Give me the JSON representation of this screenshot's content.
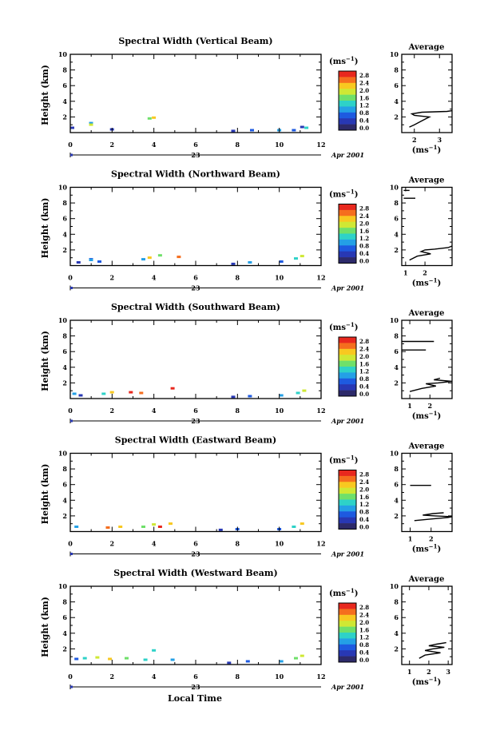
{
  "figure": {
    "xlabel_bottom": "Local Time",
    "date_label": "Apr 2001",
    "day_label": "23",
    "unit_label": "(ms",
    "unit_exp": "−1",
    "unit_close": ")",
    "avg_title": "Average"
  },
  "colorbar": {
    "ticks": [
      "2.8",
      "2.4",
      "2.0",
      "1.6",
      "1.2",
      "0.8",
      "0.4",
      "0.0"
    ],
    "colors": [
      "#e8281e",
      "#f56e1e",
      "#f8c820",
      "#cfe834",
      "#6fe06a",
      "#2ed2c8",
      "#24a0e6",
      "#1e5ae0",
      "#2838b4",
      "#2d2a6a"
    ]
  },
  "chart_data": [
    {
      "type": "heatmap",
      "title": "Spectral Width (Vertical Beam)",
      "ylabel": "Height (km)",
      "xlim": [
        0,
        12
      ],
      "ylim": [
        0,
        10
      ],
      "xticks": [
        "0",
        "2",
        "4",
        "6",
        "8",
        "10",
        "12"
      ],
      "yticks": [
        "2",
        "4",
        "6",
        "8",
        "10"
      ],
      "cells": [
        [
          0.0,
          0.6,
          0.4
        ],
        [
          0.9,
          1.2,
          1.1
        ],
        [
          0.9,
          1.0,
          2.0
        ],
        [
          1.9,
          0.4,
          0.5
        ],
        [
          3.7,
          1.8,
          1.6
        ],
        [
          3.9,
          1.9,
          2.2
        ],
        [
          7.7,
          0.2,
          0.4
        ],
        [
          8.6,
          0.3,
          0.8
        ],
        [
          9.9,
          0.3,
          1.0
        ],
        [
          10.6,
          0.3,
          0.9
        ],
        [
          11.0,
          0.7,
          0.6
        ],
        [
          11.2,
          0.6,
          1.5
        ]
      ],
      "avg": {
        "xlim": [
          1.5,
          3.5
        ],
        "xticks": [
          "2",
          "3"
        ],
        "yticks": [
          "2",
          "4",
          "6",
          "8",
          "10"
        ],
        "profile": [
          [
            1.8,
            0.7
          ],
          [
            2.0,
            1.0
          ],
          [
            2.3,
            1.5
          ],
          [
            2.6,
            2.0
          ],
          [
            2.0,
            2.2
          ],
          [
            1.9,
            2.4
          ],
          [
            2.3,
            2.6
          ],
          [
            3.3,
            2.7
          ],
          [
            3.5,
            2.8
          ]
        ]
      }
    },
    {
      "type": "heatmap",
      "title": "Spectral Width (Northward Beam)",
      "ylabel": "Height (km)",
      "xlim": [
        0,
        12
      ],
      "ylim": [
        0,
        10
      ],
      "xticks": [
        "0",
        "2",
        "4",
        "6",
        "8",
        "10",
        "12"
      ],
      "yticks": [
        "2",
        "4",
        "6",
        "8",
        "10"
      ],
      "cells": [
        [
          0.3,
          0.4,
          0.5
        ],
        [
          0.9,
          0.8,
          0.7
        ],
        [
          0.9,
          0.7,
          1.2
        ],
        [
          1.3,
          0.5,
          0.9
        ],
        [
          3.4,
          0.8,
          1.1
        ],
        [
          3.7,
          1.0,
          2.4
        ],
        [
          4.2,
          1.3,
          1.8
        ],
        [
          5.1,
          1.1,
          2.6
        ],
        [
          7.7,
          0.2,
          0.5
        ],
        [
          8.5,
          0.4,
          1.0
        ],
        [
          10.0,
          0.5,
          0.9
        ],
        [
          10.7,
          0.9,
          1.4
        ],
        [
          11.0,
          1.2,
          2.0
        ]
      ],
      "avg": {
        "xlim": [
          0.8,
          3.4
        ],
        "xticks": [
          "1",
          "2"
        ],
        "yticks": [
          "2",
          "4",
          "6",
          "8",
          "10"
        ],
        "profile": [
          [
            1.2,
            0.7
          ],
          [
            1.6,
            1.2
          ],
          [
            2.3,
            1.5
          ],
          [
            1.8,
            1.8
          ],
          [
            2.0,
            2.0
          ],
          [
            2.5,
            2.1
          ],
          [
            3.2,
            2.3
          ],
          [
            3.4,
            2.5
          ]
        ],
        "profile2": [
          [
            0.9,
            8.6
          ],
          [
            1.5,
            8.6
          ]
        ],
        "profile3": [
          [
            0.9,
            9.6
          ],
          [
            1.2,
            9.6
          ]
        ]
      }
    },
    {
      "type": "heatmap",
      "title": "Spectral Width (Southward Beam)",
      "ylabel": "Height (km)",
      "xlim": [
        0,
        12
      ],
      "ylim": [
        0,
        10
      ],
      "xticks": [
        "0",
        "2",
        "4",
        "6",
        "8",
        "10",
        "12"
      ],
      "yticks": [
        "2",
        "4",
        "6",
        "8",
        "10"
      ],
      "cells": [
        [
          0.1,
          0.6,
          1.2
        ],
        [
          0.4,
          0.4,
          0.5
        ],
        [
          1.5,
          0.6,
          1.5
        ],
        [
          1.9,
          0.8,
          2.4
        ],
        [
          2.8,
          0.8,
          2.8
        ],
        [
          3.3,
          0.7,
          2.6
        ],
        [
          4.8,
          1.3,
          2.7
        ],
        [
          7.7,
          0.2,
          0.5
        ],
        [
          8.5,
          0.3,
          0.9
        ],
        [
          10.0,
          0.4,
          1.0
        ],
        [
          10.8,
          0.7,
          1.4
        ],
        [
          11.1,
          1.0,
          2.0
        ]
      ],
      "avg": {
        "xlim": [
          0.6,
          3.1
        ],
        "xticks": [
          "1",
          "2"
        ],
        "yticks": [
          "2",
          "4",
          "6",
          "8",
          "10"
        ],
        "profile": [
          [
            1.0,
            0.9
          ],
          [
            1.6,
            1.3
          ],
          [
            2.3,
            1.6
          ],
          [
            1.8,
            1.9
          ],
          [
            2.4,
            2.0
          ],
          [
            3.1,
            2.2
          ],
          [
            2.2,
            2.4
          ],
          [
            2.5,
            2.6
          ]
        ],
        "profile2": [
          [
            0.6,
            6.2
          ],
          [
            1.8,
            6.2
          ]
        ],
        "profile3": [
          [
            0.6,
            7.3
          ],
          [
            2.2,
            7.3
          ]
        ]
      }
    },
    {
      "type": "heatmap",
      "title": "Spectral Width (Eastward Beam)",
      "ylabel": "Height (km)",
      "xlim": [
        0,
        12
      ],
      "ylim": [
        0,
        10
      ],
      "xticks": [
        "0",
        "2",
        "4",
        "6",
        "8",
        "10",
        "12"
      ],
      "yticks": [
        "2",
        "4",
        "6",
        "8",
        "10"
      ],
      "cells": [
        [
          0.2,
          0.6,
          1.2
        ],
        [
          1.7,
          0.5,
          2.6
        ],
        [
          2.3,
          0.6,
          2.2
        ],
        [
          3.4,
          0.6,
          1.6
        ],
        [
          3.9,
          0.9,
          2.0
        ],
        [
          4.2,
          0.6,
          2.8
        ],
        [
          4.7,
          1.0,
          2.3
        ],
        [
          7.1,
          0.2,
          0.4
        ],
        [
          7.9,
          0.3,
          0.8
        ],
        [
          9.9,
          0.3,
          0.9
        ],
        [
          10.6,
          0.6,
          1.4
        ],
        [
          11.0,
          1.0,
          2.1
        ]
      ],
      "avg": {
        "xlim": [
          0.6,
          3.0
        ],
        "xticks": [
          "1",
          "2"
        ],
        "yticks": [
          "2",
          "4",
          "6",
          "8",
          "10"
        ],
        "profile": [
          [
            1.2,
            1.4
          ],
          [
            2.0,
            1.6
          ],
          [
            2.8,
            1.8
          ],
          [
            3.0,
            1.9
          ],
          [
            2.2,
            2.0
          ],
          [
            1.6,
            2.1
          ],
          [
            2.1,
            2.3
          ],
          [
            2.6,
            2.4
          ]
        ],
        "profile2": [
          [
            1.0,
            5.9
          ],
          [
            2.0,
            5.9
          ]
        ]
      }
    },
    {
      "type": "heatmap",
      "title": "Spectral Width (Westward Beam)",
      "ylabel": "Height (km)",
      "xlim": [
        0,
        12
      ],
      "ylim": [
        0,
        10
      ],
      "xticks": [
        "0",
        "2",
        "4",
        "6",
        "8",
        "10",
        "12"
      ],
      "yticks": [
        "2",
        "4",
        "6",
        "8",
        "10"
      ],
      "cells": [
        [
          0.2,
          0.7,
          0.9
        ],
        [
          0.6,
          0.8,
          1.5
        ],
        [
          1.2,
          0.9,
          2.0
        ],
        [
          1.8,
          0.7,
          2.4
        ],
        [
          2.6,
          0.8,
          1.7
        ],
        [
          3.5,
          0.6,
          1.5
        ],
        [
          3.9,
          1.8,
          1.3
        ],
        [
          4.8,
          0.6,
          1.2
        ],
        [
          7.5,
          0.2,
          0.5
        ],
        [
          8.4,
          0.4,
          0.9
        ],
        [
          10.0,
          0.4,
          1.0
        ],
        [
          10.7,
          0.8,
          1.6
        ],
        [
          11.0,
          1.1,
          2.0
        ]
      ],
      "avg": {
        "xlim": [
          0.6,
          3.2
        ],
        "xticks": [
          "1",
          "2",
          "3"
        ],
        "yticks": [
          "2",
          "4",
          "6",
          "8",
          "10"
        ],
        "profile": [
          [
            1.5,
            0.8
          ],
          [
            1.8,
            1.2
          ],
          [
            2.6,
            1.5
          ],
          [
            1.8,
            1.8
          ],
          [
            2.2,
            2.0
          ],
          [
            2.8,
            2.2
          ],
          [
            2.0,
            2.4
          ],
          [
            2.4,
            2.6
          ],
          [
            2.9,
            2.8
          ]
        ]
      }
    }
  ]
}
